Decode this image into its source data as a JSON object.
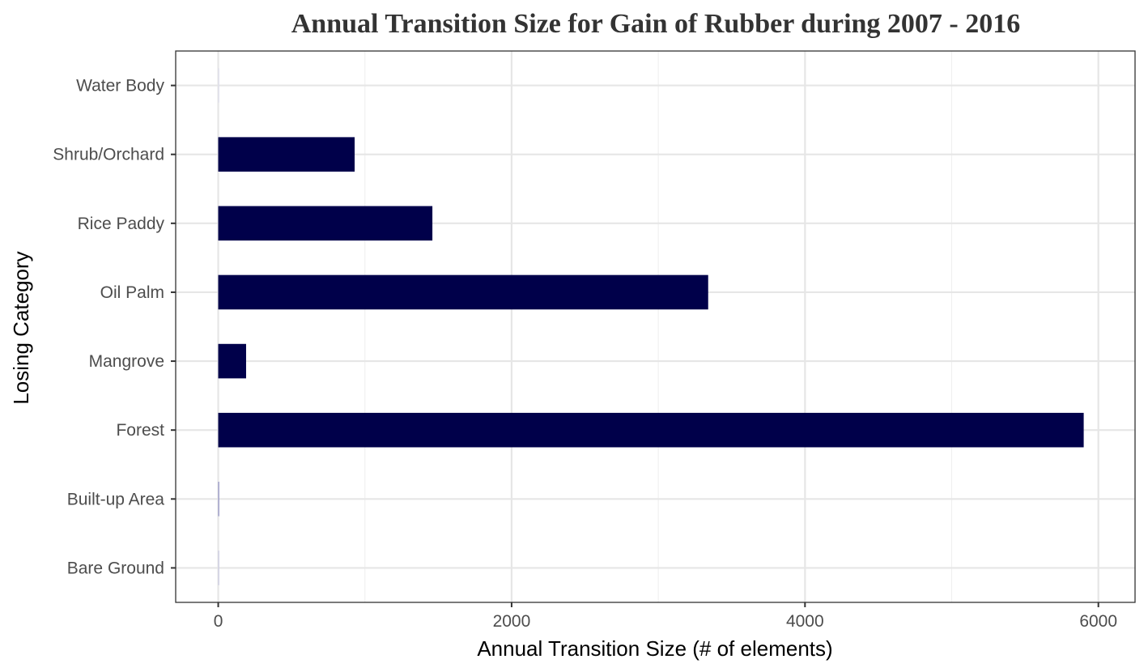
{
  "chart_data": {
    "type": "bar",
    "orientation": "horizontal",
    "title": "Annual Transition Size for Gain of  Rubber during 2007 - 2016",
    "xlabel": "Annual Transition Size (# of elements)",
    "ylabel": "Losing Category",
    "categories": [
      "Bare Ground",
      "Built-up Area",
      "Forest",
      "Mangrove",
      "Oil Palm",
      "Rice Paddy",
      "Shrub/Orchard",
      "Water Body"
    ],
    "values": [
      2,
      3,
      5900,
      190,
      3340,
      1460,
      930,
      1
    ],
    "bar_colors": [
      "#c8c8e0",
      "#8c8cc0",
      "#00004a",
      "#00004a",
      "#00004a",
      "#00004a",
      "#00004a",
      "#dcdcec"
    ],
    "xlim": [
      -290,
      6250
    ],
    "xticks": [
      0,
      2000,
      4000,
      6000
    ],
    "xtick_labels": [
      "0",
      "2000",
      "4000",
      "6000"
    ],
    "grid": true,
    "legend": "none"
  }
}
